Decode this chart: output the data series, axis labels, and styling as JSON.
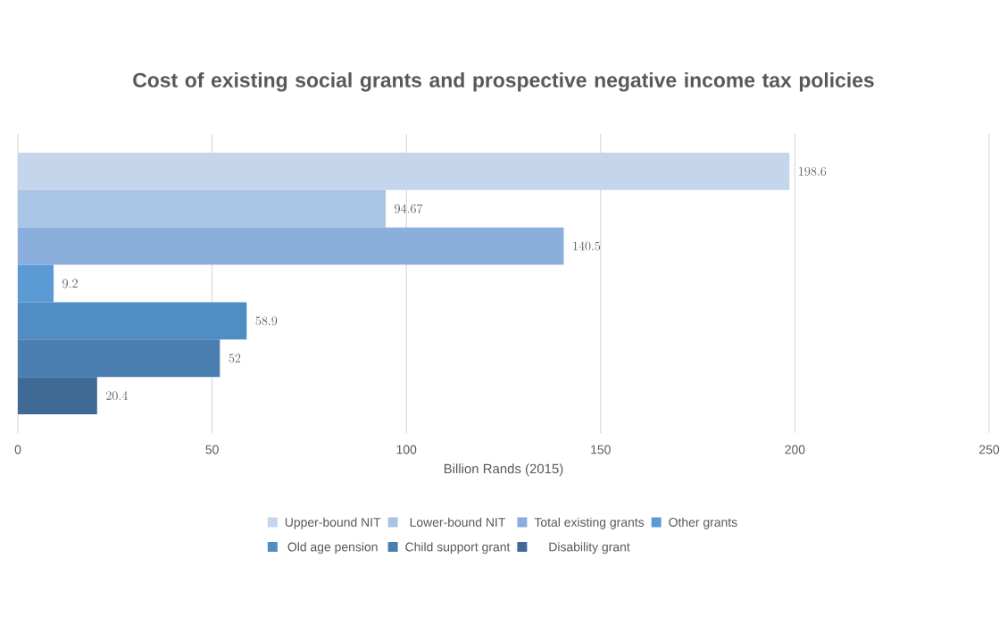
{
  "chart_data": {
    "type": "bar",
    "orientation": "horizontal",
    "title": "Cost of existing social grants and prospective negative income tax policies",
    "xlabel": "Billion Rands (2015)",
    "categories": [
      null
    ],
    "series": [
      {
        "name": "Upper-bound NIT",
        "color": "#c5d6ec",
        "values": [
          198.6
        ]
      },
      {
        "name": "Lower-bound NIT",
        "color": "#aac4e5",
        "values": [
          94.67
        ]
      },
      {
        "name": "Total existing grants",
        "color": "#8aafdc",
        "values": [
          140.5
        ]
      },
      {
        "name": "Other grants",
        "color": "#5b9bd5",
        "values": [
          9.2
        ]
      },
      {
        "name": "Old age pension",
        "color": "#508dc4",
        "values": [
          58.9
        ]
      },
      {
        "name": "Child support grant",
        "color": "#4a7eb0",
        "values": [
          52
        ]
      },
      {
        "name": "Disability grant",
        "color": "#3f6a96",
        "values": [
          20.4
        ]
      }
    ],
    "xlim": [
      0,
      250
    ],
    "xticks": [
      0,
      50,
      100,
      150,
      200,
      250
    ],
    "grid": "x",
    "legend": "bottom",
    "data_labels": true
  }
}
